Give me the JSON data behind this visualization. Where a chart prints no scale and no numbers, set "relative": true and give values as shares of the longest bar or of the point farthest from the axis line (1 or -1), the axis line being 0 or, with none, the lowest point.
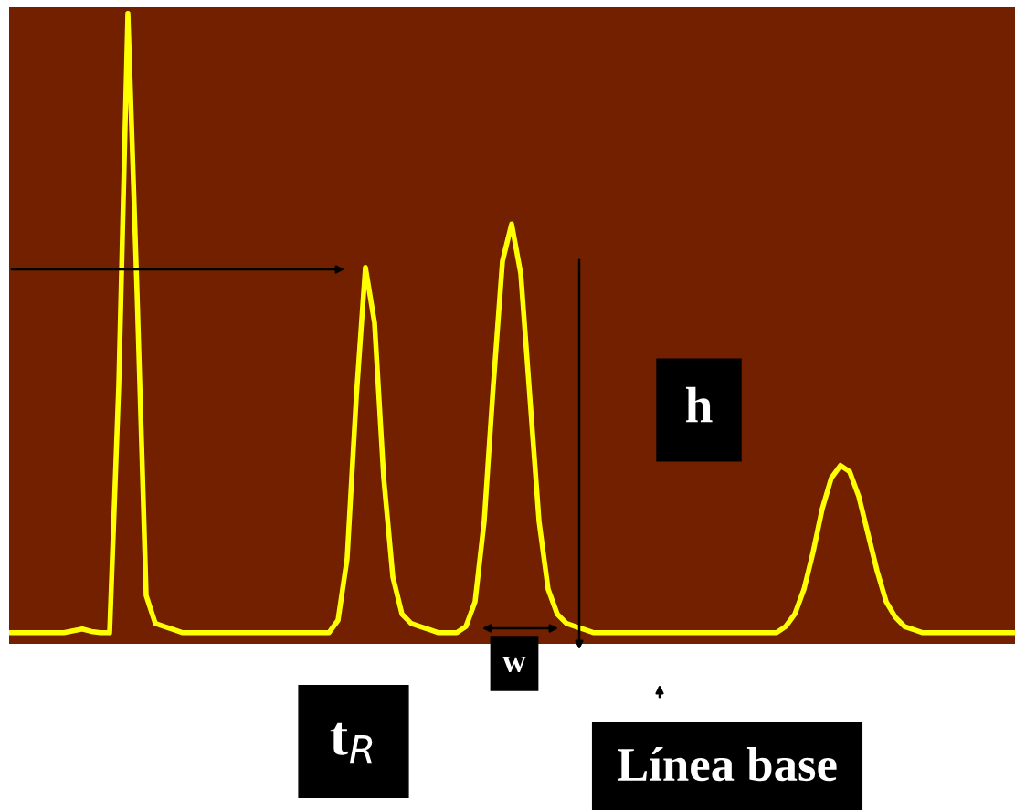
{
  "chart_data": {
    "type": "line",
    "relative": true,
    "categories": [
      null,
      null,
      null,
      null,
      null,
      null,
      null,
      null,
      null,
      null,
      null,
      null,
      null,
      null,
      null,
      null,
      null,
      null,
      null,
      null,
      null,
      null,
      null,
      null,
      null,
      null,
      null,
      null,
      null,
      null,
      null,
      null,
      null,
      null,
      null,
      null,
      null,
      null,
      null,
      null,
      null,
      null,
      null,
      null,
      null,
      null,
      null,
      null,
      null,
      null,
      null,
      null,
      null,
      null,
      null,
      null,
      null,
      null,
      null,
      null,
      null,
      null,
      null,
      null,
      null,
      null,
      null,
      null,
      null,
      null,
      null,
      null,
      null,
      null,
      null,
      null,
      null,
      null,
      null,
      null,
      null,
      null,
      null,
      null,
      null,
      null,
      null,
      null,
      null,
      null,
      null,
      null,
      null,
      null,
      null,
      null,
      null,
      null,
      null,
      null,
      null,
      null,
      null,
      null,
      null,
      null,
      null,
      null,
      null,
      null,
      null
    ],
    "series": [
      {
        "color": "#ffff00",
        "values": [
          0,
          0,
          0,
          0,
          0,
          0,
          0,
          0.003,
          0.006,
          0.002,
          0,
          0,
          0.4,
          1,
          0.55,
          0.06,
          0.015,
          0.01,
          0.005,
          0,
          0,
          0,
          0,
          0,
          0,
          0,
          0,
          0,
          0,
          0,
          0,
          0,
          0,
          0,
          0,
          0,
          0.02,
          0.12,
          0.38,
          0.59,
          0.5,
          0.25,
          0.09,
          0.03,
          0.015,
          0.01,
          0.005,
          0,
          0,
          0,
          0.01,
          0.05,
          0.18,
          0.4,
          0.6,
          0.66,
          0.58,
          0.38,
          0.18,
          0.07,
          0.03,
          0.015,
          0.01,
          0.005,
          0,
          0,
          0,
          0,
          0,
          0,
          0,
          0,
          0,
          0,
          0,
          0,
          0,
          0,
          0,
          0,
          0,
          0,
          0,
          0,
          0,
          0.01,
          0.03,
          0.07,
          0.13,
          0.2,
          0.25,
          0.27,
          0.26,
          0.22,
          0.16,
          0.1,
          0.05,
          0.025,
          0.01,
          0.005,
          0,
          0,
          0,
          0,
          0,
          0,
          0,
          0,
          0,
          0,
          0
        ]
      }
    ],
    "annotations": [
      "h",
      "w",
      "t$_{R}$",
      "Línea base"
    ]
  }
}
